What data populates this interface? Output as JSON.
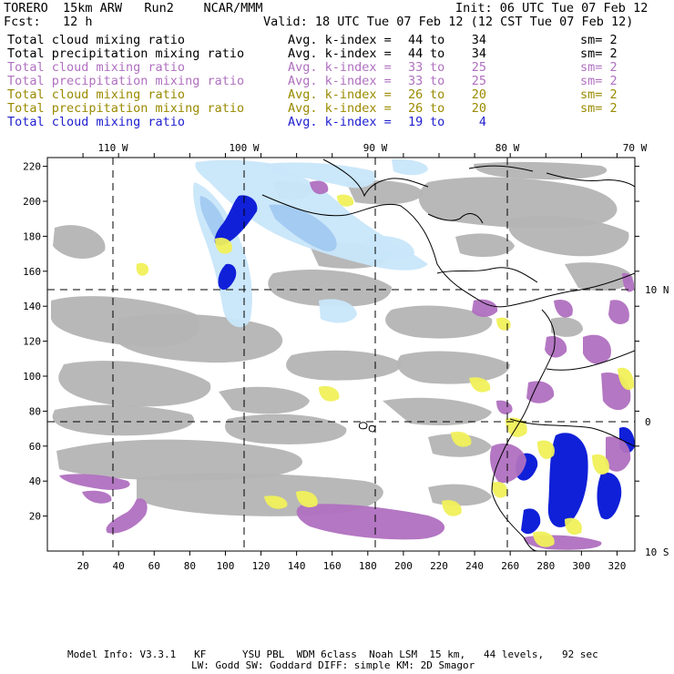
{
  "header": {
    "model": "TORERO  15km ARW   Run2    NCAR/MMM",
    "fcst": "Fcst:   12 h",
    "init": "Init: 06 UTC Tue 07 Feb 12",
    "valid": "Valid: 18 UTC Tue 07 Feb 12 (12 CST Tue 07 Feb 12)"
  },
  "legend": [
    {
      "field": "Total cloud mixing ratio",
      "k1": "44",
      "k2": "34",
      "sm": "sm= 2",
      "color": "#000000"
    },
    {
      "field": "Total precipitation mixing ratio",
      "k1": "44",
      "k2": "34",
      "sm": "sm= 2",
      "color": "#000000"
    },
    {
      "field": "Total cloud mixing ratio",
      "k1": "33",
      "k2": "25",
      "sm": "sm= 2",
      "color": "#b070c0"
    },
    {
      "field": "Total precipitation mixing ratio",
      "k1": "33",
      "k2": "25",
      "sm": "sm= 2",
      "color": "#b070c0"
    },
    {
      "field": "Total cloud mixing ratio",
      "k1": "26",
      "k2": "20",
      "sm": "sm= 2",
      "color": "#9a8a00"
    },
    {
      "field": "Total precipitation mixing ratio",
      "k1": "26",
      "k2": "20",
      "sm": "sm= 2",
      "color": "#9a8a00"
    },
    {
      "field": "Total cloud mixing ratio",
      "k1": "19",
      "k2": "4",
      "sm": "",
      "color": "#2020d0"
    }
  ],
  "legend_text": {
    "avg": "Avg. k-index =",
    "to": "to"
  },
  "map": {
    "lon_labels": [
      "110 W",
      "100 W",
      "90 W",
      "80 W",
      "70 W"
    ],
    "lat_labels": [
      "10 N",
      "0",
      "10 S"
    ],
    "x_ticks": [
      "20",
      "40",
      "60",
      "80",
      "100",
      "120",
      "140",
      "160",
      "180",
      "200",
      "220",
      "240",
      "260",
      "280",
      "300",
      "320"
    ],
    "y_ticks": [
      "20",
      "40",
      "60",
      "80",
      "100",
      "120",
      "140",
      "160",
      "180",
      "200",
      "220"
    ],
    "colors": {
      "gray_cloud": "#b4b4b4",
      "purple": "#b070c0",
      "yellow": "#f0f05a",
      "light_blue": "#c8e6fa",
      "mid_blue": "#a0c8f0",
      "dark_blue": "#1020d8",
      "coast": "#000000"
    }
  },
  "footer": {
    "line1": "Model Info: V3.3.1   KF      YSU PBL  WDM 6class  Noah LSM  15 km,   44 levels,   92 sec",
    "line2": "LW: Godd SW: Goddard DIFF: simple KM: 2D Smagor"
  }
}
